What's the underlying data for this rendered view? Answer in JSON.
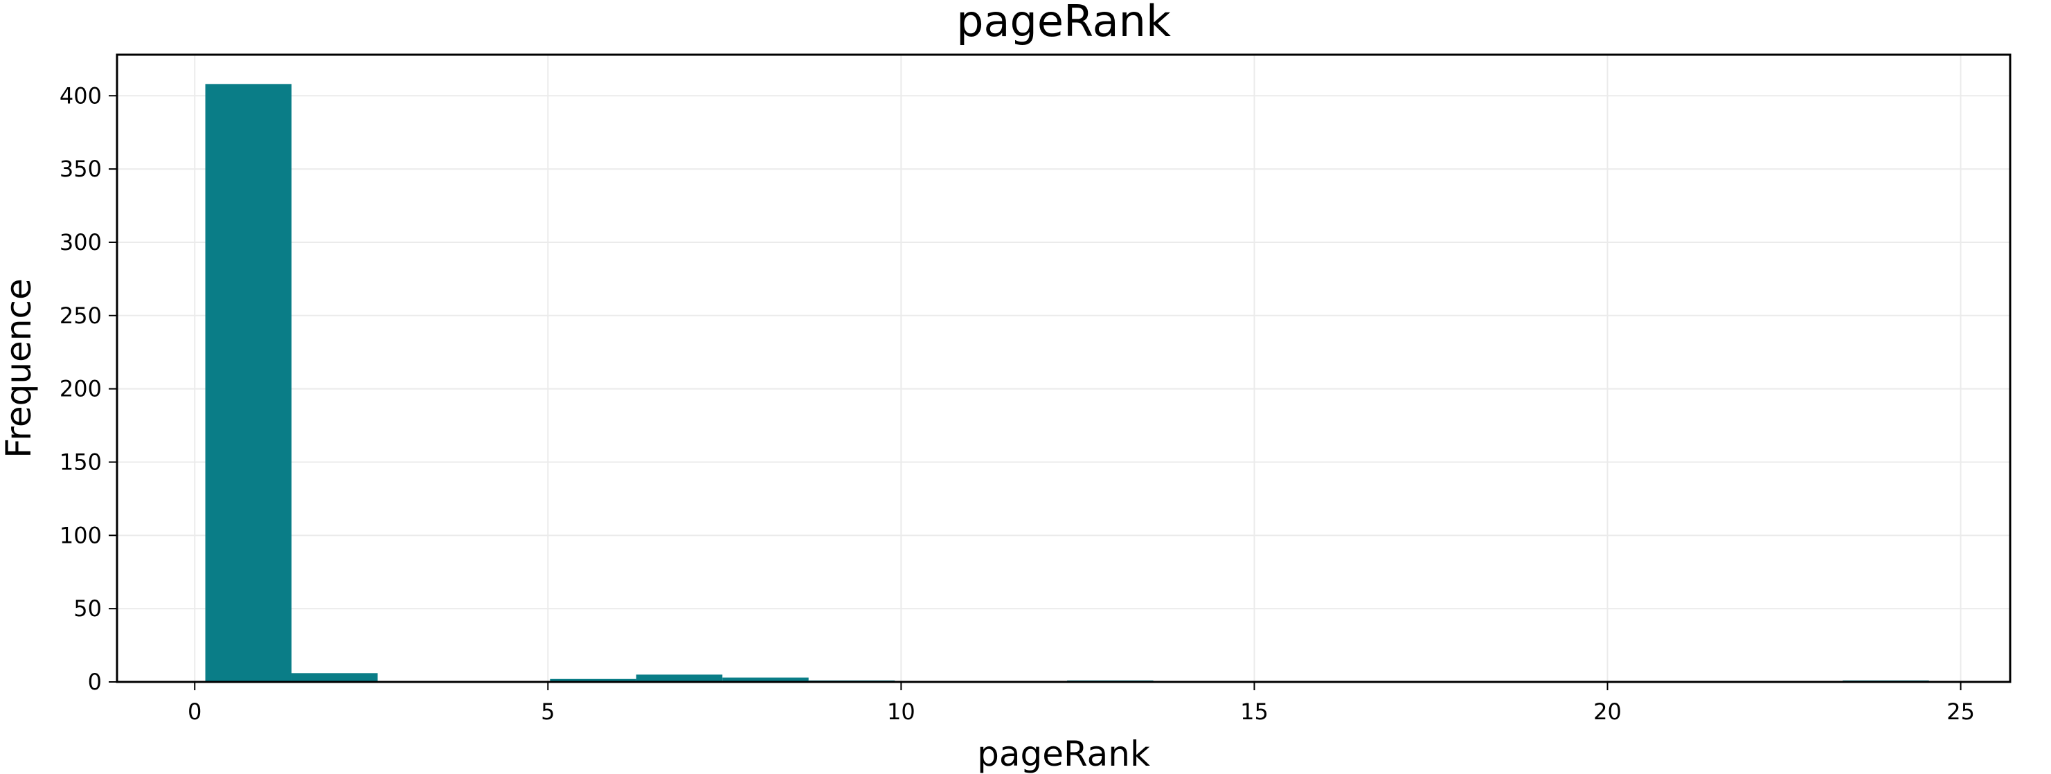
{
  "chart_data": {
    "type": "bar",
    "title": "pageRank",
    "xlabel": "pageRank",
    "ylabel": "Frequence",
    "bar_color": "#0a7d87",
    "grid": true,
    "xlim": [
      -1.1,
      25.7
    ],
    "ylim": [
      0,
      428
    ],
    "xticks": [
      0,
      5,
      10,
      15,
      20,
      25
    ],
    "yticks": [
      0,
      50,
      100,
      150,
      200,
      250,
      300,
      350,
      400
    ],
    "bins": [
      {
        "x0": 0.15,
        "x1": 1.37,
        "count": 408
      },
      {
        "x0": 1.37,
        "x1": 2.59,
        "count": 6
      },
      {
        "x0": 2.59,
        "x1": 3.81,
        "count": 0
      },
      {
        "x0": 3.81,
        "x1": 5.03,
        "count": 0
      },
      {
        "x0": 5.03,
        "x1": 6.25,
        "count": 2
      },
      {
        "x0": 6.25,
        "x1": 7.47,
        "count": 5
      },
      {
        "x0": 7.47,
        "x1": 8.69,
        "count": 3
      },
      {
        "x0": 8.69,
        "x1": 9.91,
        "count": 1
      },
      {
        "x0": 9.91,
        "x1": 11.13,
        "count": 0
      },
      {
        "x0": 11.13,
        "x1": 12.35,
        "count": 0
      },
      {
        "x0": 12.35,
        "x1": 13.57,
        "count": 1
      },
      {
        "x0": 13.57,
        "x1": 14.79,
        "count": 0
      },
      {
        "x0": 14.79,
        "x1": 16.01,
        "count": 0
      },
      {
        "x0": 16.01,
        "x1": 17.23,
        "count": 0
      },
      {
        "x0": 17.23,
        "x1": 18.45,
        "count": 0
      },
      {
        "x0": 18.45,
        "x1": 19.67,
        "count": 0
      },
      {
        "x0": 19.67,
        "x1": 20.89,
        "count": 0
      },
      {
        "x0": 20.89,
        "x1": 22.11,
        "count": 0
      },
      {
        "x0": 22.11,
        "x1": 23.33,
        "count": 0
      },
      {
        "x0": 23.33,
        "x1": 24.55,
        "count": 1
      }
    ]
  }
}
